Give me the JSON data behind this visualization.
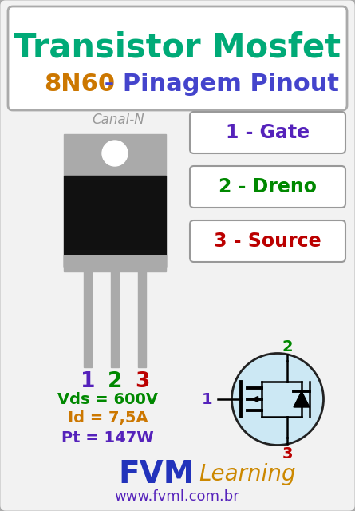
{
  "bg_color": "#d8d8d8",
  "inner_bg_color": "#f2f2f2",
  "title_line1": "Transistor Mosfet",
  "title_color": "#00aa77",
  "title_line2_part1": "8N60",
  "title_line2_part2": " - Pinagem Pinout",
  "title_color2_1": "#cc7700",
  "title_color2_2": "#4444cc",
  "canal_n_text": "Canal-N",
  "canal_n_color": "#999999",
  "pin_labels": [
    "1 - Gate",
    "2 - Dreno",
    "3 - Source"
  ],
  "pin_colors": [
    "#5522bb",
    "#008800",
    "#bb0000"
  ],
  "pin_numbers": [
    "1",
    "2",
    "3"
  ],
  "pin_num_colors": [
    "#5522bb",
    "#008800",
    "#bb0000"
  ],
  "specs": [
    "Vds = 600V",
    "Id = 7,5A",
    "Pt = 147W"
  ],
  "spec_colors": [
    "#008800",
    "#cc7700",
    "#5522bb"
  ],
  "fvm_color": "#2233bb",
  "learning_color": "#cc8800",
  "website_color": "#5522bb",
  "fvm_text": "FVM",
  "learning_text": "Learning",
  "website_text": "www.fvml.com.br"
}
